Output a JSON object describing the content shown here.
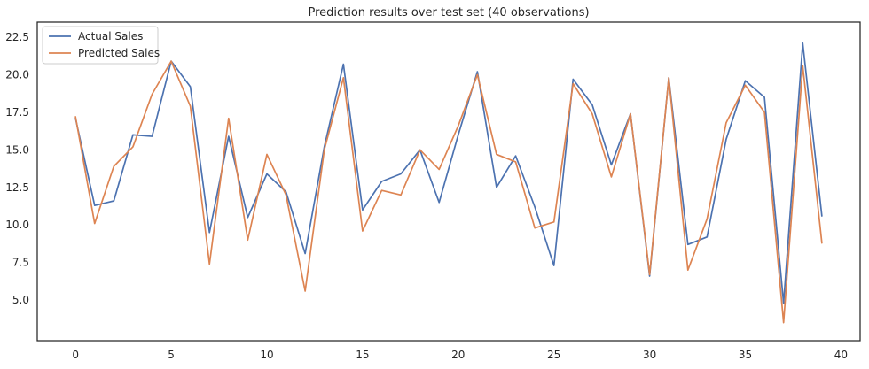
{
  "chart_data": {
    "type": "line",
    "title": "Prediction results over test set (40 observations)",
    "xlabel": "",
    "ylabel": "",
    "xlim": [
      -2,
      41
    ],
    "ylim": [
      2.3,
      23.5
    ],
    "xticks": [
      0,
      5,
      10,
      15,
      20,
      25,
      30,
      35,
      40
    ],
    "yticks": [
      5.0,
      7.5,
      10.0,
      12.5,
      15.0,
      17.5,
      20.0,
      22.5
    ],
    "ytick_labels": [
      "5.0",
      "7.5",
      "10.0",
      "12.5",
      "15.0",
      "17.5",
      "20.0",
      "22.5"
    ],
    "grid": false,
    "legend": "top-left",
    "x": [
      0,
      1,
      2,
      3,
      4,
      5,
      6,
      7,
      8,
      9,
      10,
      11,
      12,
      13,
      14,
      15,
      16,
      17,
      18,
      19,
      20,
      21,
      22,
      23,
      24,
      25,
      26,
      27,
      28,
      29,
      30,
      31,
      32,
      33,
      34,
      35,
      36,
      37,
      38,
      39
    ],
    "series": [
      {
        "name": "Actual Sales",
        "color": "#4c72b0",
        "values": [
          17.1,
          11.3,
          11.6,
          16.0,
          15.9,
          20.9,
          19.2,
          9.5,
          15.9,
          10.5,
          13.4,
          12.2,
          8.1,
          15.2,
          20.7,
          11.0,
          12.9,
          13.4,
          15.0,
          11.5,
          16.0,
          20.2,
          12.5,
          14.6,
          11.2,
          7.3,
          19.7,
          18.0,
          14.0,
          17.4,
          6.6,
          19.8,
          8.7,
          9.2,
          15.7,
          19.6,
          18.5,
          4.8,
          22.1,
          10.6
        ]
      },
      {
        "name": "Predicted Sales",
        "color": "#dd8452",
        "values": [
          17.2,
          10.1,
          13.9,
          15.2,
          18.7,
          20.9,
          17.9,
          7.4,
          17.1,
          9.0,
          14.7,
          12.0,
          5.6,
          15.0,
          19.8,
          9.6,
          12.3,
          12.0,
          15.0,
          13.7,
          16.6,
          20.0,
          14.7,
          14.2,
          9.8,
          10.2,
          19.4,
          17.4,
          13.2,
          17.4,
          6.7,
          19.8,
          7.0,
          10.4,
          16.8,
          19.3,
          17.5,
          3.5,
          20.6,
          8.8
        ]
      }
    ]
  }
}
